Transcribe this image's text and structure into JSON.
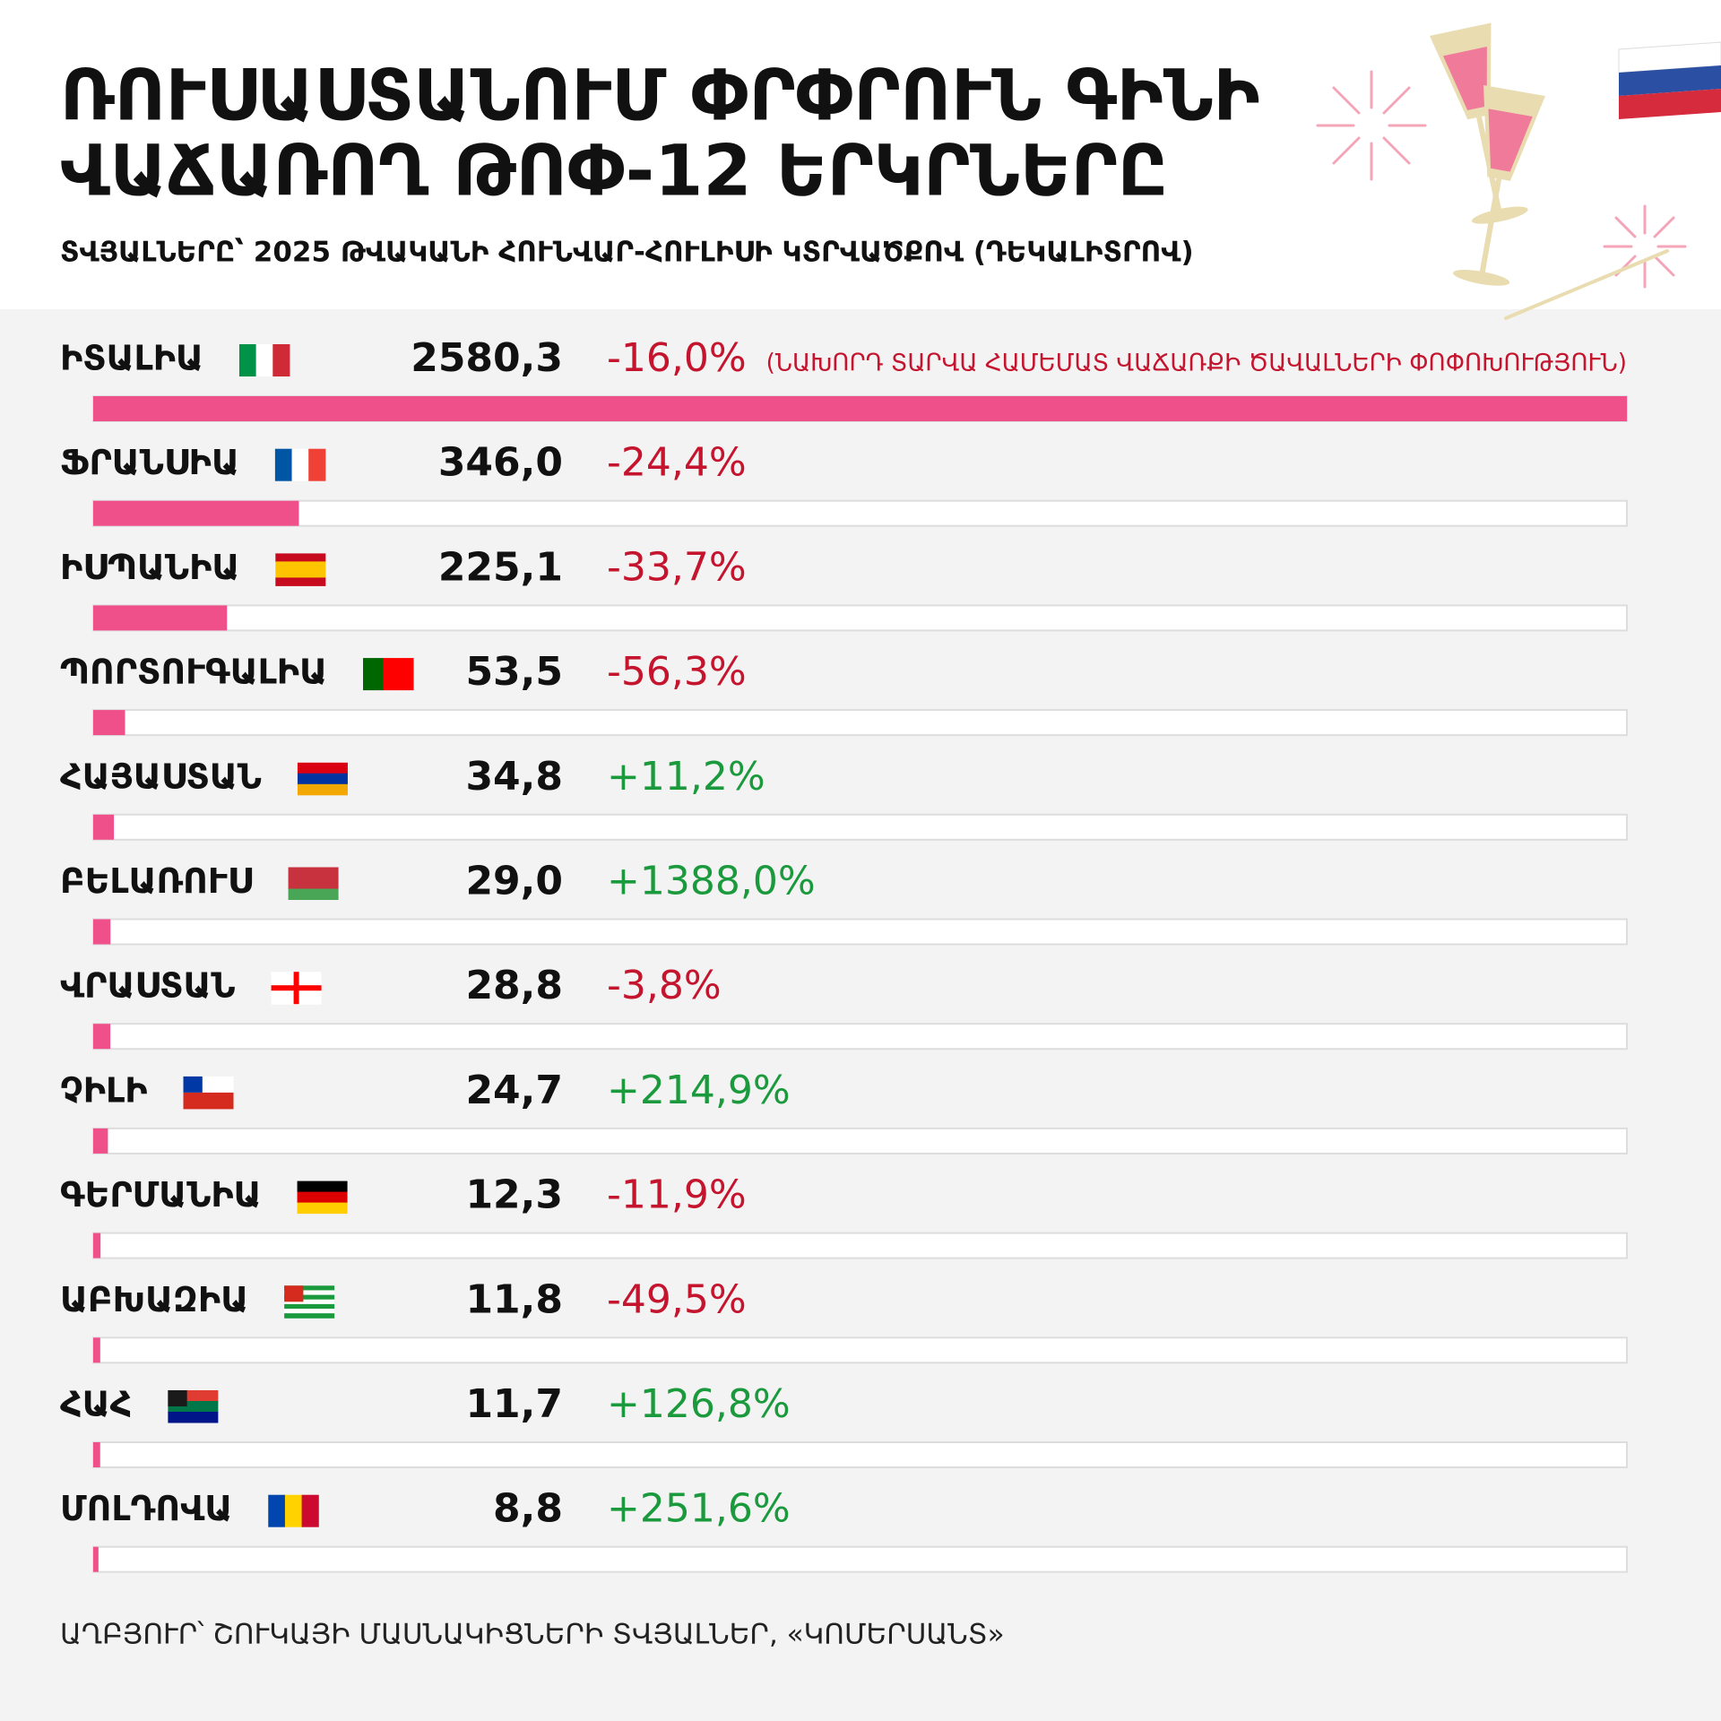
{
  "chart_data": {
    "type": "bar",
    "orientation": "horizontal",
    "title": [
      "ՌՈՒՍԱՍՏԱՆՈՒՄ ՓՐՓՐՈՒՆ ԳԻՆԻ",
      "ՎԱՃԱՌՈՂ ԹՈՓ-12 ԵՐԿՐՆԵՐԸ"
    ],
    "subtitle": "ՏՎՅԱԼՆԵՐԸ՝ 2025 ԹՎԱԿԱՆԻ ՀՈՒՆՎԱՐ-ՀՈՒԼԻՍԻ ԿՏՐՎԱԾՔՈՎ (ԴԵԿԱԼԻՏՐՈՎ)",
    "annotation": "(ՆԱԽՈՐԴ ՏԱՐՎԱ ՀԱՄԵՄԱՏ ՎԱՃԱՌՔԻ ԾԱՎԱԼՆԵՐԻ ՓՈՓՈԽՈՒԹՅՈՒՆ)",
    "source": "ԱՂԲՅՈՒՐ՝ ՇՈՒԿԱՅԻ ՄԱՍՆԱԿԻՑՆԵՐԻ ՏՎՅԱԼՆԵՐ, «ԿՈՄԵՐՍԱՆՏ»",
    "categories": [
      "ԻՏԱԼԻԱ",
      "ՖՐԱՆՍԻԱ",
      "ԻՍՊԱՆԻԱ",
      "ՊՈՐՏՈՒԳԱԼԻԱ",
      "ՀԱՅԱՍՏԱՆ",
      "ԲԵԼԱՌՈՒՍ",
      "ՎՐԱՍՏԱՆ",
      "ՉԻԼԻ",
      "ԳԵՐՄԱՆԻԱ",
      "ԱԲԽԱԶԻԱ",
      "ՀԱՀ",
      "ՄՈԼԴՈՎԱ"
    ],
    "values": [
      2580.3,
      346.0,
      225.1,
      53.5,
      34.8,
      29.0,
      28.8,
      24.7,
      12.3,
      11.8,
      11.7,
      8.8
    ],
    "value_labels": [
      "2580,3",
      "346,0",
      "225,1",
      "53,5",
      "34,8",
      "29,0",
      "28,8",
      "24,7",
      "12,3",
      "11,8",
      "11,7",
      "8,8"
    ],
    "changes": [
      -16.0,
      -24.4,
      -33.7,
      -56.3,
      11.2,
      1388.0,
      -3.8,
      214.9,
      -11.9,
      -49.5,
      126.8,
      251.6
    ],
    "change_labels": [
      "-16,0%",
      "-24,4%",
      "-33,7%",
      "-56,3%",
      "+11,2%",
      "+1388,0%",
      "-3,8%",
      "+214,9%",
      "-11,9%",
      "-49,5%",
      "+126,8%",
      "+251,6%"
    ],
    "xlim": [
      0,
      2580.3
    ],
    "color": "#f0508a",
    "positive_color": "#1a9a3c",
    "negative_color": "#c4142e"
  }
}
